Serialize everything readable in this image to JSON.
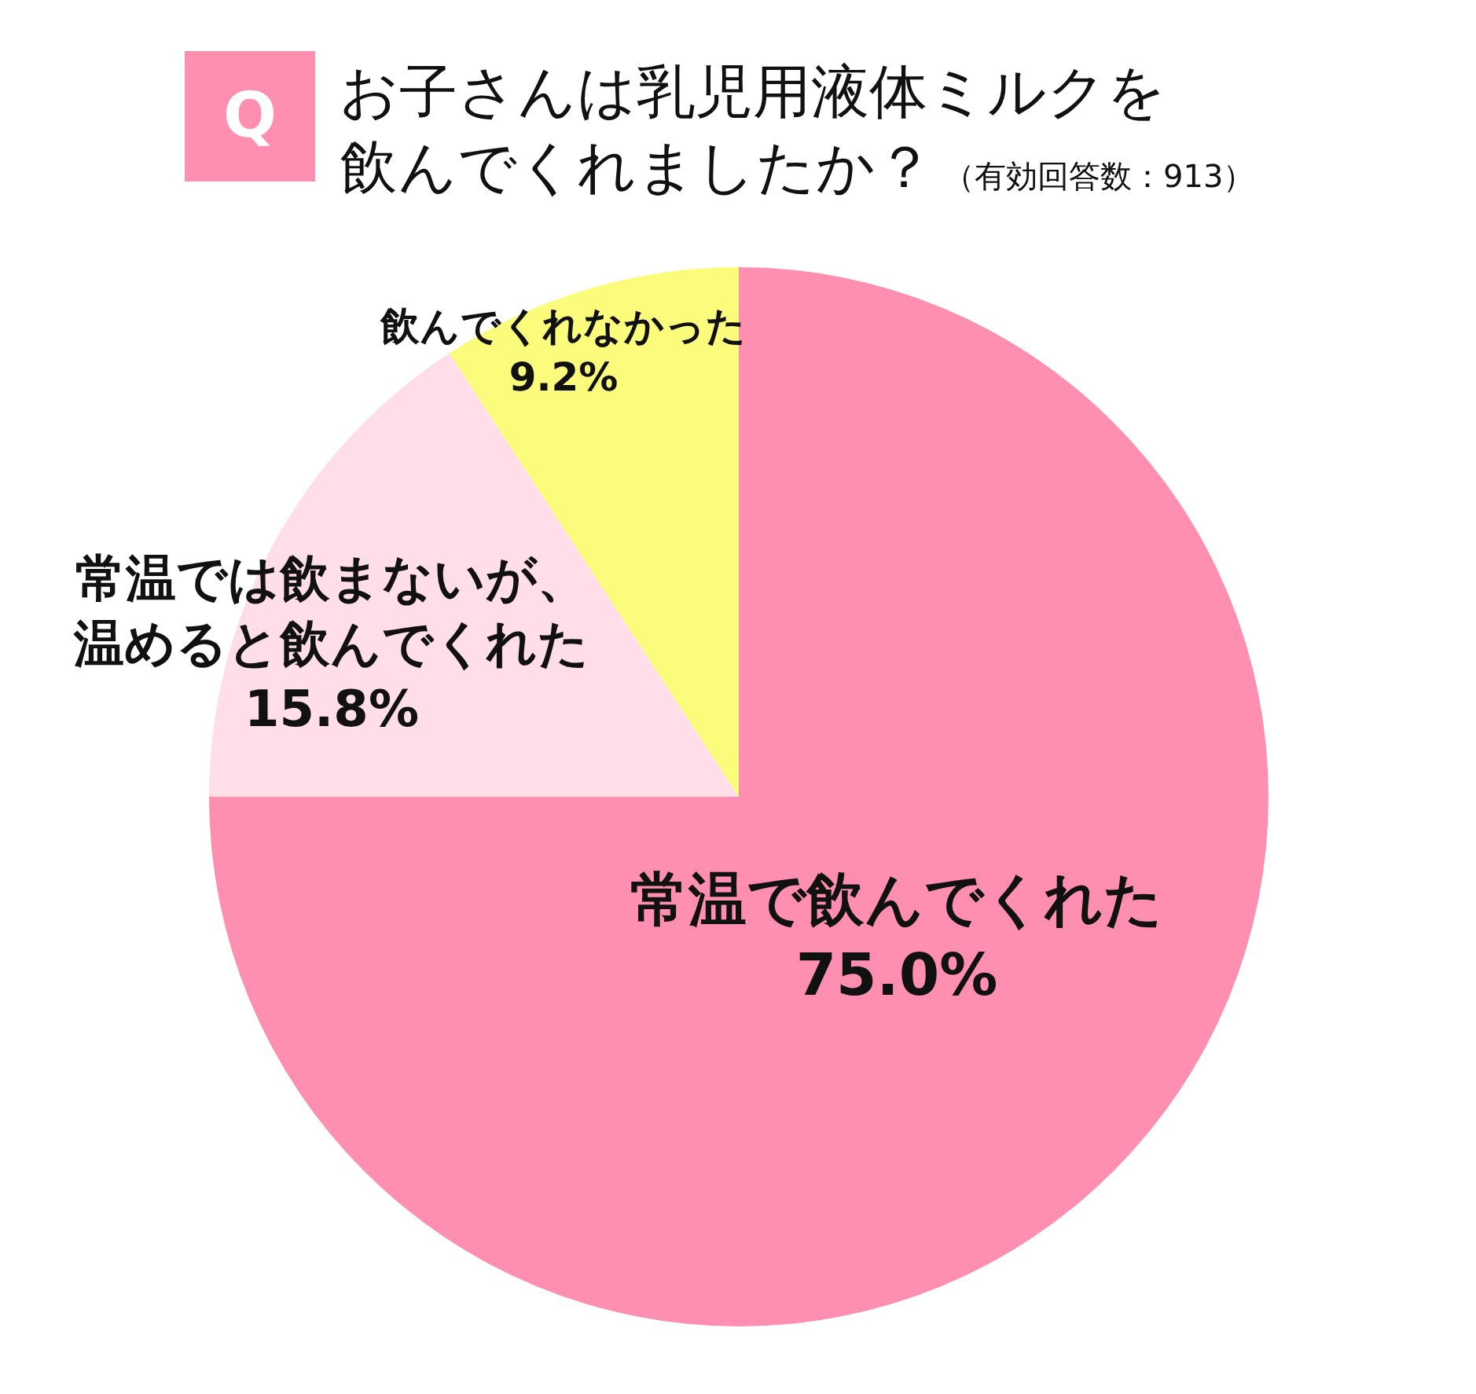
{
  "chart_data": {
    "type": "pie",
    "title": "お子さんは乳児用液体ミルクを飲んでくれましたか？",
    "subtitle": "（有効回答数：913）",
    "categories": [
      "常温で飲んでくれた",
      "常温では飲まないが、温めると飲んでくれた",
      "飲んでくれなかった"
    ],
    "values": [
      75.0,
      15.8,
      9.2
    ],
    "value_labels": [
      "75.0%",
      "15.8%",
      "9.2%"
    ],
    "colors": [
      "#ff8fb1",
      "#ffdde9",
      "#fcfc7c"
    ],
    "annotations": [
      "Q"
    ]
  }
}
